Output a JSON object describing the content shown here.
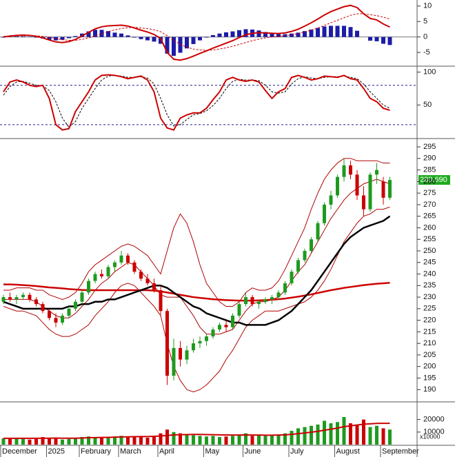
{
  "chart_data": [
    {
      "type": "macd",
      "ylim": [
        -9,
        11.5
      ],
      "yticks": [
        10,
        5,
        0,
        -5
      ],
      "zero_line": true,
      "macd": {
        "color": "#cc0000",
        "values": [
          0,
          0.3,
          0.5,
          0.6,
          0.5,
          0.2,
          -0.3,
          -1,
          -1.6,
          -1.8,
          -1.5,
          -0.8,
          0.3,
          1.5,
          2.6,
          3.3,
          3.6,
          3.7,
          3.8,
          3.5,
          2.9,
          2.2,
          1.6,
          0.8,
          -0.5,
          -5,
          -7.2,
          -7.5,
          -7,
          -6.2,
          -5.3,
          -4.5,
          -3.6,
          -2.8,
          -2,
          -1.2,
          -0.2,
          0.7,
          1.2,
          1.4,
          1.3,
          1.2,
          1.1,
          1.3,
          1.8,
          2.5,
          3.5,
          4.6,
          5.8,
          7.1,
          8.2,
          9,
          9.8,
          10.2,
          9.5,
          7.5,
          6,
          5.5,
          4.2,
          3.2
        ]
      },
      "signal": {
        "color": "#cc0000",
        "dashed": true,
        "values": [
          0.2,
          0.2,
          0.3,
          0.4,
          0.4,
          0.4,
          0.2,
          -0.1,
          -0.5,
          -0.9,
          -1.1,
          -1.1,
          -0.8,
          -0.3,
          0.3,
          1,
          1.7,
          2.3,
          2.7,
          3,
          3.1,
          2.9,
          2.7,
          2.3,
          1.7,
          0.4,
          -1.1,
          -2.4,
          -3.3,
          -3.9,
          -4.2,
          -4.3,
          -4.2,
          -3.9,
          -3.5,
          -3,
          -2.4,
          -1.8,
          -1.2,
          -0.7,
          -0.3,
          0,
          0.2,
          0.4,
          0.7,
          1.1,
          1.6,
          2.2,
          2.9,
          3.7,
          4.6,
          5.4,
          6.2,
          7,
          7.5,
          7.5,
          7.2,
          6.9,
          6.4,
          5.8
        ]
      },
      "histogram": {
        "color": "#1c1ca8",
        "values": [
          -0.2,
          0.1,
          0.2,
          0.2,
          0.1,
          -0.2,
          -0.5,
          -0.9,
          -1.1,
          -0.9,
          -0.4,
          0.3,
          1.1,
          1.8,
          2.3,
          2.3,
          1.9,
          1.4,
          1.1,
          0.5,
          -0.2,
          -0.7,
          -1.1,
          -1.5,
          -2.2,
          -5.4,
          -6.1,
          -5.1,
          -3.7,
          -2.3,
          -1.1,
          -0.2,
          0.6,
          1.1,
          1.5,
          1.8,
          2.2,
          2.5,
          2.4,
          2.1,
          1.6,
          1.2,
          0.9,
          0.9,
          1.1,
          1.4,
          1.9,
          2.4,
          2.9,
          3.4,
          3.6,
          3.6,
          3.6,
          3.2,
          2,
          0,
          -1.2,
          -1.4,
          -2.2,
          -2.6
        ]
      }
    },
    {
      "type": "stochastic",
      "ylim": [
        0,
        108
      ],
      "yticks": [
        100,
        50
      ],
      "ref_lines": [
        80,
        20
      ],
      "k": {
        "color": "#cc0000",
        "values": [
          70,
          85,
          88,
          85,
          80,
          78,
          80,
          60,
          20,
          12,
          14,
          40,
          55,
          70,
          88,
          95,
          96,
          95,
          93,
          90,
          92,
          94,
          88,
          70,
          30,
          15,
          12,
          30,
          35,
          38,
          38,
          45,
          58,
          70,
          88,
          92,
          88,
          86,
          88,
          85,
          72,
          60,
          70,
          75,
          92,
          95,
          92,
          88,
          90,
          94,
          93,
          92,
          95,
          90,
          88,
          75,
          60,
          55,
          45,
          42
        ]
      },
      "d": {
        "color": "#000000",
        "dashed": true,
        "values": [
          65,
          78,
          85,
          86,
          83,
          80,
          79,
          72,
          55,
          30,
          16,
          25,
          45,
          60,
          75,
          88,
          94,
          95,
          94,
          92,
          92,
          93,
          91,
          82,
          60,
          35,
          18,
          20,
          28,
          35,
          37,
          41,
          49,
          60,
          75,
          86,
          89,
          88,
          88,
          87,
          80,
          70,
          68,
          70,
          82,
          90,
          93,
          91,
          90,
          92,
          93,
          93,
          94,
          92,
          90,
          82,
          70,
          60,
          50,
          45
        ]
      }
    },
    {
      "type": "candlestick",
      "ylim": [
        185,
        298.3
      ],
      "yticks": [
        190,
        195,
        200,
        205,
        210,
        215,
        220,
        225,
        230,
        235,
        240,
        245,
        250,
        255,
        260,
        265,
        270,
        275,
        280,
        285,
        290,
        295
      ],
      "up_color": "#1f9a1f",
      "down_color": "#cc0000",
      "open": [
        228,
        230,
        229,
        230,
        231,
        229,
        227,
        224,
        221,
        219,
        222,
        225,
        228,
        232,
        237,
        240,
        239,
        243,
        245,
        248,
        245,
        241,
        238,
        236,
        233,
        224,
        196,
        208,
        203,
        207,
        210,
        211,
        213,
        216,
        218,
        217,
        222,
        227,
        230,
        227,
        228,
        229,
        230,
        232,
        236,
        241,
        246,
        250,
        255,
        262,
        270,
        274,
        282,
        287,
        283,
        274,
        268,
        283,
        280,
        273
      ],
      "high": [
        231,
        232,
        231,
        232,
        232,
        230,
        228,
        225,
        223,
        223,
        226,
        229,
        233,
        238,
        241,
        242,
        244,
        246,
        250,
        249,
        246,
        242,
        240,
        238,
        235,
        225,
        212,
        211,
        209,
        212,
        213,
        214,
        217,
        219,
        220,
        223,
        228,
        232,
        231,
        229,
        230,
        231,
        233,
        237,
        242,
        247,
        251,
        256,
        263,
        271,
        276,
        283,
        290,
        289,
        285,
        278,
        284,
        288,
        282,
        282
      ],
      "low": [
        227,
        228,
        227,
        229,
        228,
        226,
        223,
        220,
        217,
        218,
        221,
        224,
        227,
        231,
        236,
        238,
        238,
        241,
        244,
        244,
        240,
        237,
        235,
        232,
        222,
        192,
        194,
        200,
        201,
        206,
        208,
        209,
        212,
        215,
        215,
        216,
        221,
        226,
        226,
        225,
        227,
        227,
        229,
        231,
        235,
        240,
        245,
        249,
        254,
        261,
        268,
        273,
        280,
        281,
        272,
        265,
        267,
        279,
        270,
        272
      ],
      "close": [
        230,
        229,
        230,
        231,
        229,
        227,
        224,
        221,
        219,
        222,
        225,
        228,
        232,
        237,
        240,
        239,
        243,
        245,
        248,
        245,
        241,
        238,
        236,
        233,
        224,
        196,
        208,
        203,
        207,
        210,
        211,
        213,
        216,
        218,
        217,
        222,
        227,
        230,
        227,
        228,
        229,
        230,
        232,
        236,
        241,
        246,
        250,
        255,
        262,
        270,
        274,
        282,
        287,
        283,
        274,
        268,
        283,
        285,
        273,
        280.69
      ],
      "last_label": "280.690",
      "last_label_color": "#1faa1f",
      "lines": [
        {
          "color": "#b00000",
          "width": 1,
          "values": [
            233,
            233,
            234,
            234,
            234,
            233,
            233,
            231,
            230,
            229,
            230,
            232,
            236,
            241,
            244,
            246,
            248,
            250,
            252,
            253,
            252,
            250,
            248,
            244,
            240,
            250,
            260,
            266,
            262,
            254,
            244,
            236,
            232,
            228,
            226,
            226,
            228,
            232,
            234,
            233,
            233,
            234,
            237,
            242,
            248,
            254,
            260,
            268,
            275,
            281,
            285,
            288,
            290,
            290,
            289,
            289,
            289,
            289,
            288,
            288
          ]
        },
        {
          "color": "#b00000",
          "width": 1,
          "values": [
            226,
            225,
            224,
            224,
            223,
            222,
            219,
            216,
            214,
            213,
            213,
            214,
            216,
            218,
            222,
            225,
            228,
            232,
            235,
            236,
            235,
            232,
            229,
            226,
            222,
            210,
            200,
            194,
            190,
            189,
            190,
            192,
            195,
            198,
            203,
            207,
            212,
            217,
            220,
            222,
            224,
            224,
            224,
            225,
            226,
            227,
            228,
            230,
            233,
            237,
            242,
            248,
            254,
            258,
            262,
            265,
            266,
            268,
            268,
            269
          ]
        },
        {
          "color": "#b00000",
          "width": 1,
          "values": [
            229,
            229,
            229,
            229,
            229,
            228,
            226,
            224,
            222,
            221,
            221,
            223,
            226,
            229,
            233,
            236,
            238,
            241,
            243,
            245,
            244,
            241,
            238,
            235,
            231,
            230,
            230,
            230,
            226,
            222,
            217,
            214,
            214,
            214,
            215,
            216,
            220,
            224,
            227,
            228,
            228,
            229,
            230,
            233,
            237,
            241,
            244,
            249,
            254,
            259,
            264,
            268,
            272,
            275,
            277,
            279,
            280,
            281,
            280,
            279
          ]
        },
        {
          "color": "#cc0000",
          "width": 2.5,
          "values": [
            235.5,
            235.5,
            235.4,
            235.2,
            235,
            234.8,
            234.5,
            234.2,
            234,
            233.8,
            233.5,
            233.3,
            233.1,
            233,
            233,
            233,
            233,
            233,
            233,
            233,
            233,
            233,
            233,
            232.8,
            232.5,
            232,
            231.5,
            231,
            230.5,
            230,
            229.7,
            229.4,
            229.1,
            228.9,
            228.7,
            228.6,
            228.5,
            228.5,
            228.5,
            228.6,
            228.7,
            228.9,
            229.1,
            229.4,
            229.8,
            230.2,
            230.7,
            231.2,
            231.8,
            232.4,
            233,
            233.5,
            234,
            234.4,
            234.8,
            235.2,
            235.5,
            235.8,
            236,
            236.2
          ]
        },
        {
          "color": "#000000",
          "width": 2.5,
          "values": [
            228,
            227,
            226,
            225,
            225,
            225,
            225,
            225,
            225,
            225,
            226,
            226,
            227,
            227,
            228,
            228,
            229,
            229,
            230,
            231,
            232,
            233,
            234,
            235,
            235,
            234,
            232,
            230,
            228,
            226,
            225,
            223,
            222,
            221,
            220,
            219,
            219,
            218,
            218,
            218,
            218,
            219,
            220,
            222,
            224,
            227,
            230,
            233,
            237,
            241,
            245,
            249,
            253,
            256,
            258,
            260,
            261,
            262,
            263,
            265
          ]
        }
      ]
    },
    {
      "type": "volume",
      "ylim": [
        0,
        33000
      ],
      "yticks": [
        20000,
        10000
      ],
      "unit_label": "x10000",
      "up_color": "#1f9a1f",
      "down_color": "#cc0000",
      "categories": [
        "December",
        null,
        null,
        null,
        null,
        null,
        null,
        "2025",
        null,
        null,
        null,
        null,
        "February",
        null,
        null,
        null,
        null,
        null,
        "March",
        null,
        null,
        null,
        null,
        null,
        "April",
        null,
        null,
        null,
        null,
        null,
        null,
        "May",
        null,
        null,
        null,
        null,
        null,
        "June",
        null,
        null,
        null,
        null,
        null,
        null,
        "July",
        null,
        null,
        null,
        null,
        null,
        null,
        "August",
        null,
        null,
        null,
        null,
        null,
        null,
        "September",
        null
      ],
      "values": [
        5000,
        4500,
        5500,
        5000,
        4000,
        4500,
        6000,
        5000,
        5500,
        4000,
        4500,
        5000,
        6000,
        6500,
        6000,
        5500,
        6000,
        6500,
        7000,
        6000,
        6500,
        6000,
        5500,
        7000,
        9000,
        12000,
        10000,
        9000,
        8000,
        7500,
        7000,
        6500,
        7000,
        6000,
        6500,
        7000,
        8000,
        9000,
        7000,
        7500,
        7000,
        7500,
        8000,
        9000,
        11000,
        13000,
        14000,
        15000,
        16000,
        19000,
        17000,
        18000,
        22000,
        17000,
        16000,
        20000,
        14000,
        15000,
        13000,
        12000
      ],
      "ma": {
        "color": "#cc0000",
        "values": [
          5000,
          5000,
          5000,
          5000,
          5000,
          5000,
          5100,
          5100,
          5200,
          5100,
          5100,
          5100,
          5300,
          5500,
          5600,
          5700,
          5800,
          5900,
          6100,
          6200,
          6300,
          6400,
          6400,
          6600,
          6900,
          7300,
          7700,
          7900,
          8000,
          8100,
          8100,
          8000,
          7900,
          7800,
          7700,
          7600,
          7600,
          7700,
          7600,
          7600,
          7500,
          7500,
          7600,
          7800,
          8200,
          8700,
          9300,
          9900,
          10600,
          11500,
          12300,
          13200,
          14300,
          15000,
          15600,
          16300,
          16600,
          16900,
          17000,
          17000
        ]
      }
    }
  ]
}
